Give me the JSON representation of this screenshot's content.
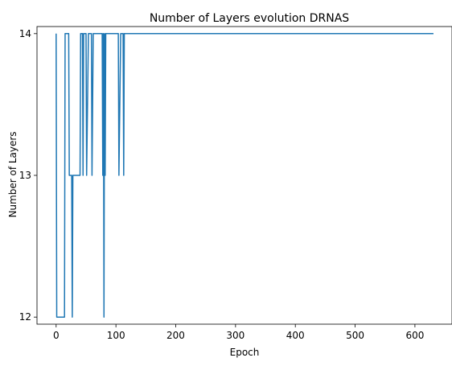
{
  "chart_data": {
    "type": "line",
    "title": "Number of Layers evolution DRNAS",
    "xlabel": "Epoch",
    "ylabel": "Number of Layers",
    "xlim": [
      -32,
      662
    ],
    "ylim": [
      11.95,
      14.05
    ],
    "xticks": [
      0,
      100,
      200,
      300,
      400,
      500,
      600
    ],
    "yticks": [
      12,
      13,
      14
    ],
    "grid": false,
    "series": [
      {
        "color": "#1f77b4",
        "x": [
          0,
          1,
          2,
          14,
          15,
          21,
          22,
          26,
          27,
          28,
          29,
          30,
          40,
          41,
          44,
          45,
          46,
          48,
          50,
          51,
          54,
          55,
          59,
          60,
          62,
          63,
          64,
          69,
          70,
          72,
          75,
          77,
          78,
          79,
          80,
          81,
          82,
          83,
          84,
          104,
          105,
          108,
          109,
          112,
          113,
          114,
          631
        ],
        "y": [
          14,
          12,
          12,
          12,
          14,
          14,
          13,
          13,
          12,
          13,
          13,
          13,
          13,
          14,
          14,
          13,
          14,
          14,
          14,
          13,
          14,
          14,
          14,
          13,
          14,
          14,
          14,
          14,
          14,
          14,
          14,
          14,
          13,
          14,
          12,
          14,
          13,
          14,
          14,
          14,
          13,
          14,
          14,
          14,
          13,
          14,
          14
        ]
      }
    ]
  }
}
